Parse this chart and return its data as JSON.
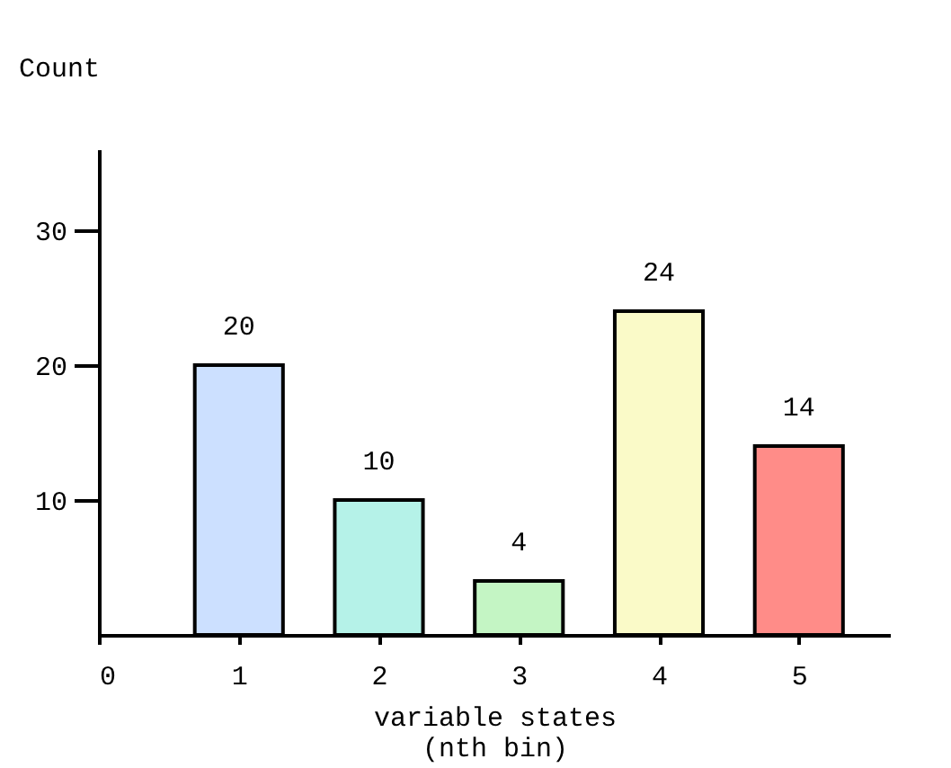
{
  "chart_data": {
    "type": "bar",
    "x": [
      1,
      2,
      3,
      4,
      5
    ],
    "values": [
      20,
      10,
      4,
      24,
      14
    ],
    "colors": [
      "#cce0ff",
      "#b5f2e8",
      "#c4f5c4",
      "#fafac8",
      "#ff8c88"
    ],
    "xlabel": "variable states\n(nth bin)",
    "ylabel": "Count",
    "xlim": [
      0,
      5.65
    ],
    "xticks": [
      0,
      1,
      2,
      3,
      4,
      5
    ],
    "ylim": [
      0,
      36
    ],
    "yticks": [
      10,
      20,
      30
    ],
    "data_labels": true,
    "grid": false
  }
}
